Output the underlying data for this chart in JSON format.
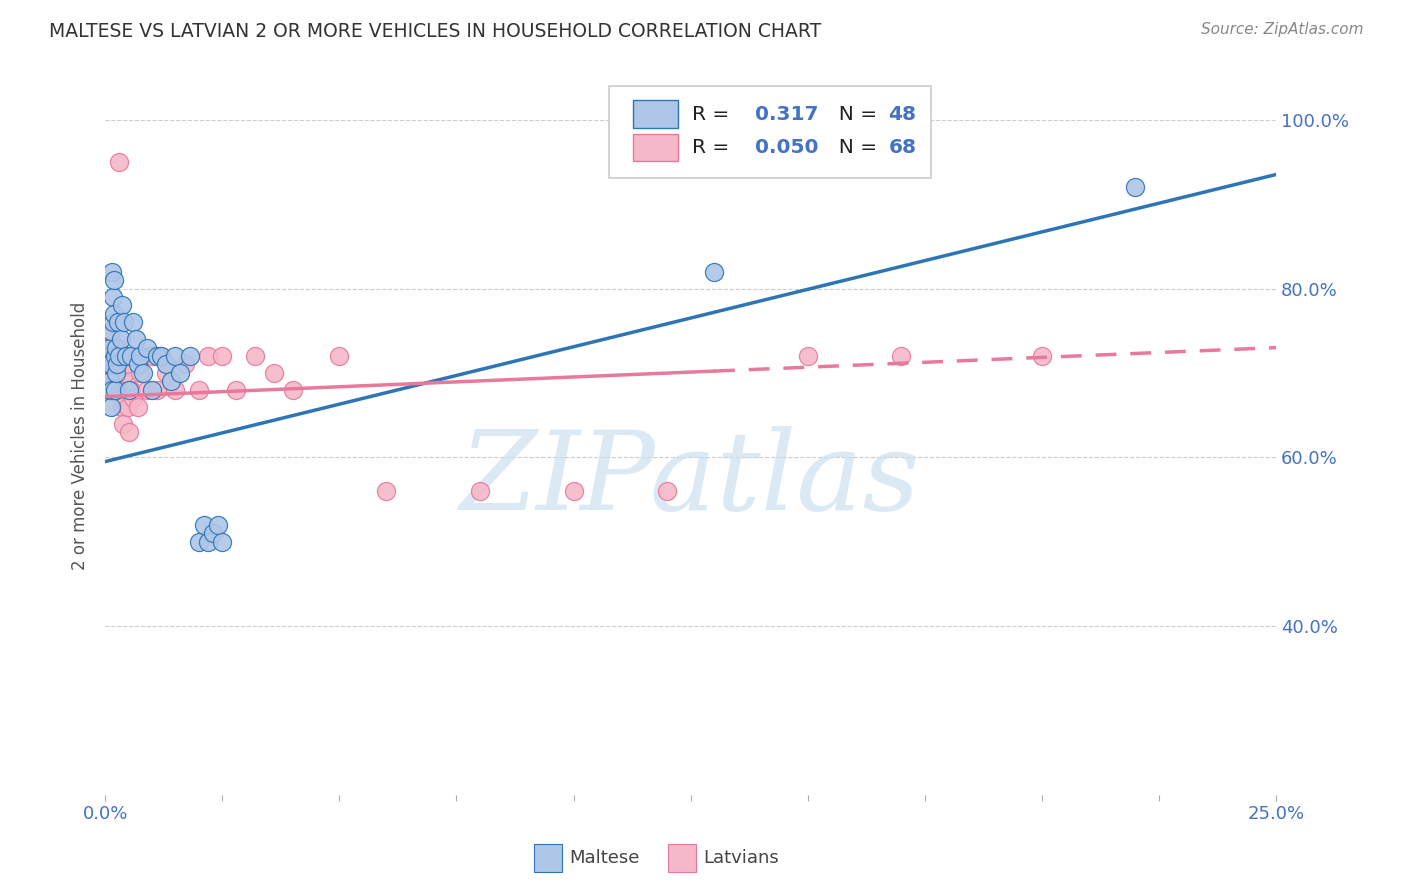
{
  "title": "MALTESE VS LATVIAN 2 OR MORE VEHICLES IN HOUSEHOLD CORRELATION CHART",
  "source": "Source: ZipAtlas.com",
  "ylabel": "2 or more Vehicles in Household",
  "xlabel_maltese": "Maltese",
  "xlabel_latvian": "Latvians",
  "x_min": 0.0,
  "x_max": 0.25,
  "y_min": 0.2,
  "y_max": 1.05,
  "watermark": "ZIPatlas",
  "legend_maltese_R": "0.317",
  "legend_maltese_N": "48",
  "legend_latvian_R": "0.050",
  "legend_latvian_N": "68",
  "maltese_color": "#aec6e8",
  "latvian_color": "#f5b8c8",
  "maltese_line_color": "#2e75b6",
  "latvian_line_color": "#e8799a",
  "background_color": "#ffffff",
  "grid_color": "#cccccc",
  "title_color": "#333333",
  "axis_tick_color": "#4472c4",
  "watermark_color": "#cce0f0",
  "maltese_scatter_x": [
    0.0008,
    0.0009,
    0.001,
    0.001,
    0.0011,
    0.0012,
    0.0013,
    0.0014,
    0.0015,
    0.0016,
    0.0017,
    0.0018,
    0.0019,
    0.002,
    0.0021,
    0.0022,
    0.0023,
    0.0025,
    0.0028,
    0.003,
    0.0033,
    0.0036,
    0.004,
    0.0045,
    0.005,
    0.0055,
    0.006,
    0.0065,
    0.007,
    0.0075,
    0.008,
    0.009,
    0.01,
    0.011,
    0.012,
    0.013,
    0.014,
    0.015,
    0.016,
    0.018,
    0.02,
    0.021,
    0.022,
    0.023,
    0.024,
    0.025,
    0.13,
    0.22
  ],
  "maltese_scatter_y": [
    0.68,
    0.72,
    0.69,
    0.71,
    0.73,
    0.66,
    0.75,
    0.68,
    0.82,
    0.76,
    0.79,
    0.81,
    0.77,
    0.68,
    0.72,
    0.7,
    0.73,
    0.71,
    0.76,
    0.72,
    0.74,
    0.78,
    0.76,
    0.72,
    0.68,
    0.72,
    0.76,
    0.74,
    0.71,
    0.72,
    0.7,
    0.73,
    0.68,
    0.72,
    0.72,
    0.71,
    0.69,
    0.72,
    0.7,
    0.72,
    0.5,
    0.52,
    0.5,
    0.51,
    0.52,
    0.5,
    0.82,
    0.92
  ],
  "latvian_scatter_x": [
    0.0005,
    0.0006,
    0.0007,
    0.0007,
    0.0008,
    0.0009,
    0.0009,
    0.001,
    0.001,
    0.0011,
    0.0011,
    0.0012,
    0.0013,
    0.0013,
    0.0014,
    0.0015,
    0.0015,
    0.0016,
    0.0017,
    0.0018,
    0.0019,
    0.002,
    0.0021,
    0.0022,
    0.0023,
    0.0024,
    0.0025,
    0.0026,
    0.0027,
    0.0028,
    0.003,
    0.0032,
    0.0035,
    0.0038,
    0.004,
    0.0042,
    0.0045,
    0.0048,
    0.005,
    0.0055,
    0.006,
    0.0065,
    0.007,
    0.0075,
    0.008,
    0.009,
    0.01,
    0.011,
    0.012,
    0.013,
    0.015,
    0.017,
    0.02,
    0.022,
    0.025,
    0.028,
    0.032,
    0.036,
    0.04,
    0.05,
    0.06,
    0.08,
    0.1,
    0.12,
    0.15,
    0.17,
    0.2,
    0.003
  ],
  "latvian_scatter_y": [
    0.68,
    0.7,
    0.72,
    0.69,
    0.68,
    0.71,
    0.73,
    0.72,
    0.69,
    0.75,
    0.68,
    0.72,
    0.7,
    0.68,
    0.71,
    0.73,
    0.68,
    0.72,
    0.7,
    0.73,
    0.71,
    0.68,
    0.72,
    0.7,
    0.69,
    0.72,
    0.68,
    0.71,
    0.73,
    0.68,
    0.72,
    0.7,
    0.66,
    0.64,
    0.72,
    0.7,
    0.71,
    0.66,
    0.63,
    0.68,
    0.67,
    0.72,
    0.66,
    0.7,
    0.72,
    0.68,
    0.72,
    0.68,
    0.72,
    0.7,
    0.68,
    0.71,
    0.68,
    0.72,
    0.72,
    0.68,
    0.72,
    0.7,
    0.68,
    0.72,
    0.56,
    0.56,
    0.56,
    0.56,
    0.72,
    0.72,
    0.72,
    0.95
  ]
}
